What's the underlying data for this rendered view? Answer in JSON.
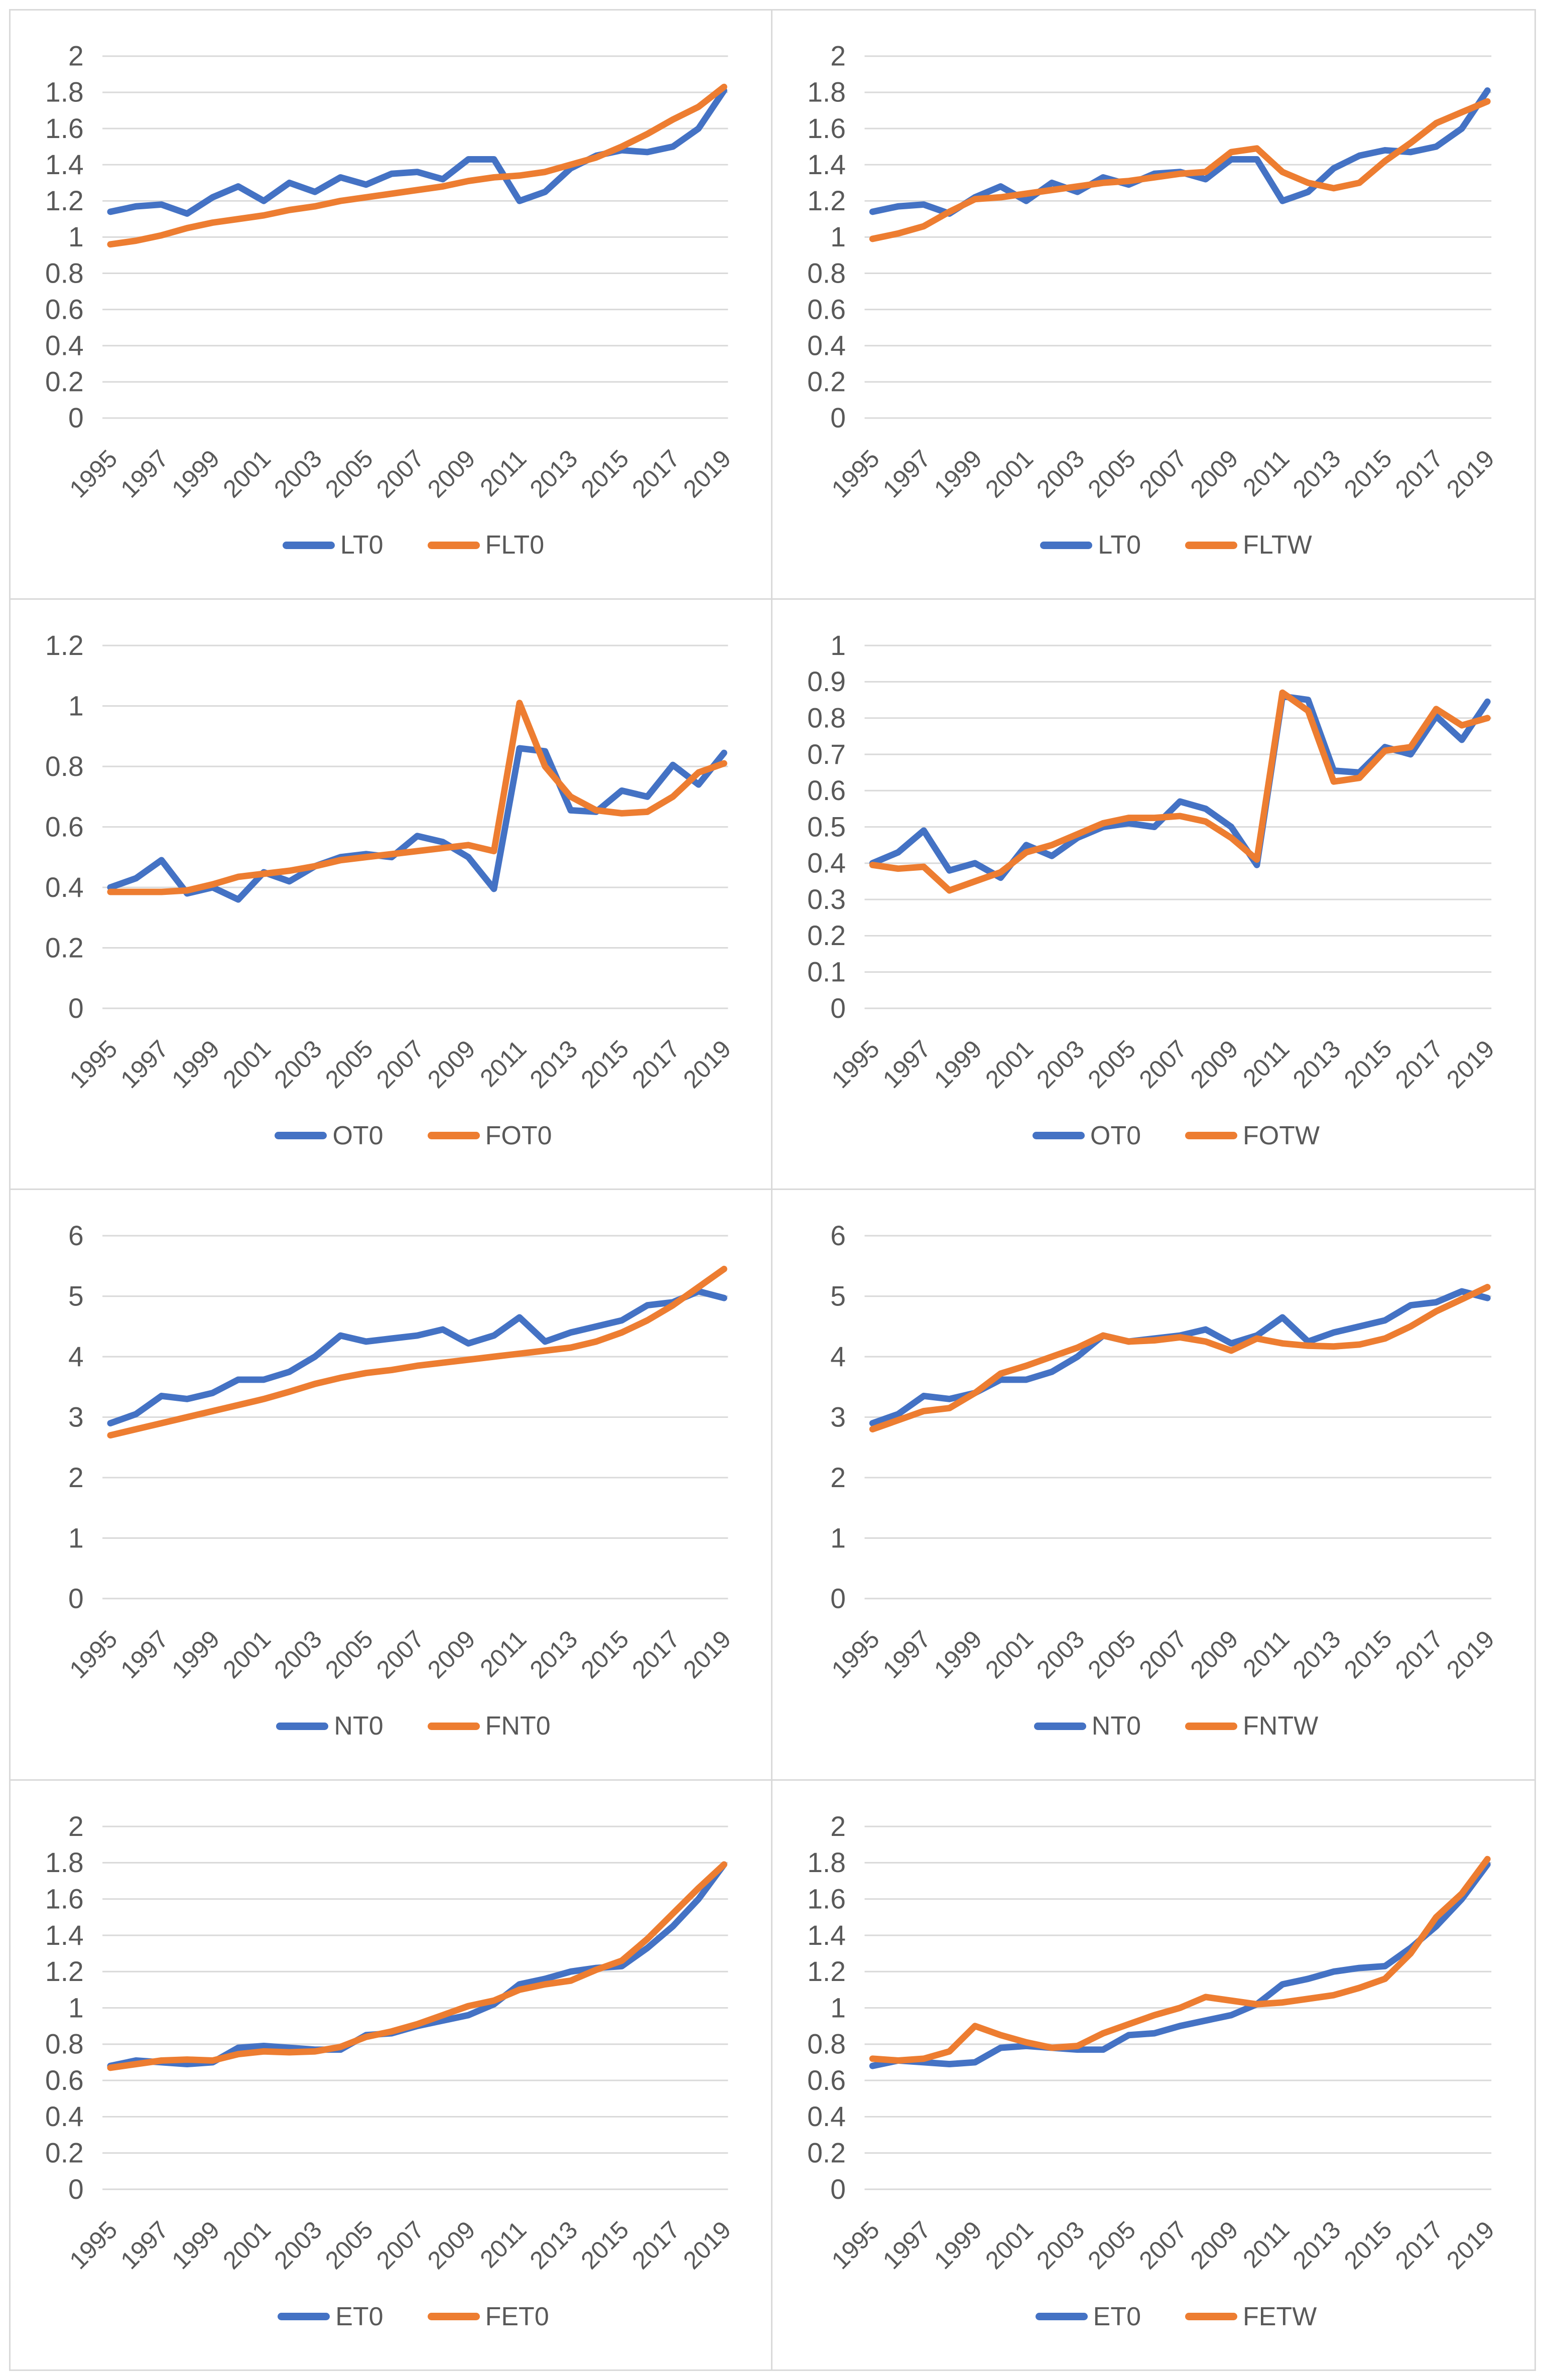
{
  "page": {
    "background": "#ffffff",
    "panel_border_color": "#d9d9d9",
    "grid_color": "#d9d9d9",
    "text_color": "#595959"
  },
  "years": [
    1995,
    1996,
    1997,
    1998,
    1999,
    2000,
    2001,
    2002,
    2003,
    2004,
    2005,
    2006,
    2007,
    2008,
    2009,
    2010,
    2011,
    2012,
    2013,
    2014,
    2015,
    2016,
    2017,
    2018,
    2019
  ],
  "x_tick_labels": [
    "1995",
    "1997",
    "1999",
    "2001",
    "2003",
    "2005",
    "2007",
    "2009",
    "2011",
    "2013",
    "2015",
    "2017",
    "2019"
  ],
  "chart_data": [
    {
      "type": "line",
      "grid": true,
      "legend_position": "bottom",
      "xlabel": "",
      "ylabel": "",
      "title": "",
      "ylim": [
        0,
        2
      ],
      "ystep": 0.2,
      "series": [
        {
          "name": "LT0",
          "color": "#4472C4",
          "values": [
            1.14,
            1.17,
            1.18,
            1.13,
            1.22,
            1.28,
            1.2,
            1.3,
            1.25,
            1.33,
            1.29,
            1.35,
            1.36,
            1.32,
            1.43,
            1.43,
            1.2,
            1.25,
            1.38,
            1.45,
            1.48,
            1.47,
            1.5,
            1.6,
            1.81
          ]
        },
        {
          "name": "FLT0",
          "color": "#ED7D31",
          "values": [
            0.96,
            0.98,
            1.01,
            1.05,
            1.08,
            1.1,
            1.12,
            1.15,
            1.17,
            1.2,
            1.22,
            1.24,
            1.26,
            1.28,
            1.31,
            1.33,
            1.34,
            1.36,
            1.4,
            1.44,
            1.5,
            1.57,
            1.65,
            1.72,
            1.83
          ]
        }
      ]
    },
    {
      "type": "line",
      "grid": true,
      "legend_position": "bottom",
      "xlabel": "",
      "ylabel": "",
      "title": "",
      "ylim": [
        0,
        2
      ],
      "ystep": 0.2,
      "series": [
        {
          "name": "LT0",
          "color": "#4472C4",
          "values": [
            1.14,
            1.17,
            1.18,
            1.13,
            1.22,
            1.28,
            1.2,
            1.3,
            1.25,
            1.33,
            1.29,
            1.35,
            1.36,
            1.32,
            1.43,
            1.43,
            1.2,
            1.25,
            1.38,
            1.45,
            1.48,
            1.47,
            1.5,
            1.6,
            1.81
          ]
        },
        {
          "name": "FLTW",
          "color": "#ED7D31",
          "values": [
            0.99,
            1.02,
            1.06,
            1.14,
            1.21,
            1.22,
            1.24,
            1.26,
            1.28,
            1.3,
            1.31,
            1.33,
            1.35,
            1.36,
            1.47,
            1.49,
            1.36,
            1.3,
            1.27,
            1.3,
            1.42,
            1.52,
            1.63,
            1.69,
            1.75
          ]
        }
      ]
    },
    {
      "type": "line",
      "grid": true,
      "legend_position": "bottom",
      "xlabel": "",
      "ylabel": "",
      "title": "",
      "ylim": [
        0,
        1.2
      ],
      "ystep": 0.2,
      "series": [
        {
          "name": "OT0",
          "color": "#4472C4",
          "values": [
            0.4,
            0.43,
            0.49,
            0.38,
            0.4,
            0.36,
            0.45,
            0.42,
            0.47,
            0.5,
            0.51,
            0.5,
            0.57,
            0.55,
            0.5,
            0.395,
            0.86,
            0.85,
            0.655,
            0.65,
            0.72,
            0.7,
            0.805,
            0.74,
            0.845
          ]
        },
        {
          "name": "FOT0",
          "color": "#ED7D31",
          "values": [
            0.385,
            0.385,
            0.385,
            0.39,
            0.41,
            0.435,
            0.445,
            0.455,
            0.47,
            0.49,
            0.5,
            0.51,
            0.52,
            0.53,
            0.54,
            0.52,
            1.01,
            0.8,
            0.7,
            0.655,
            0.645,
            0.65,
            0.7,
            0.78,
            0.81
          ]
        }
      ]
    },
    {
      "type": "line",
      "grid": true,
      "legend_position": "bottom",
      "xlabel": "",
      "ylabel": "",
      "title": "",
      "ylim": [
        0,
        1
      ],
      "ystep": 0.1,
      "series": [
        {
          "name": "OT0",
          "color": "#4472C4",
          "values": [
            0.4,
            0.43,
            0.49,
            0.38,
            0.4,
            0.36,
            0.45,
            0.42,
            0.47,
            0.5,
            0.51,
            0.5,
            0.57,
            0.55,
            0.5,
            0.395,
            0.86,
            0.85,
            0.655,
            0.65,
            0.72,
            0.7,
            0.805,
            0.74,
            0.845
          ]
        },
        {
          "name": "FOTW",
          "color": "#ED7D31",
          "values": [
            0.395,
            0.385,
            0.39,
            0.325,
            0.35,
            0.375,
            0.43,
            0.45,
            0.48,
            0.51,
            0.525,
            0.525,
            0.53,
            0.515,
            0.47,
            0.41,
            0.87,
            0.82,
            0.625,
            0.635,
            0.71,
            0.72,
            0.825,
            0.78,
            0.8
          ]
        }
      ]
    },
    {
      "type": "line",
      "grid": true,
      "legend_position": "bottom",
      "xlabel": "",
      "ylabel": "",
      "title": "",
      "ylim": [
        0,
        6
      ],
      "ystep": 1,
      "series": [
        {
          "name": "NT0",
          "color": "#4472C4",
          "values": [
            2.9,
            3.05,
            3.35,
            3.3,
            3.4,
            3.62,
            3.62,
            3.75,
            4.0,
            4.35,
            4.25,
            4.3,
            4.35,
            4.45,
            4.22,
            4.35,
            4.65,
            4.25,
            4.4,
            4.5,
            4.6,
            4.85,
            4.9,
            5.08,
            4.97
          ]
        },
        {
          "name": "FNT0",
          "color": "#ED7D31",
          "values": [
            2.7,
            2.8,
            2.9,
            3.0,
            3.1,
            3.2,
            3.3,
            3.42,
            3.55,
            3.65,
            3.73,
            3.78,
            3.85,
            3.9,
            3.95,
            4.0,
            4.05,
            4.1,
            4.15,
            4.25,
            4.4,
            4.6,
            4.85,
            5.15,
            5.45
          ]
        }
      ]
    },
    {
      "type": "line",
      "grid": true,
      "legend_position": "bottom",
      "xlabel": "",
      "ylabel": "",
      "title": "",
      "ylim": [
        0,
        6
      ],
      "ystep": 1,
      "series": [
        {
          "name": "NT0",
          "color": "#4472C4",
          "values": [
            2.9,
            3.05,
            3.35,
            3.3,
            3.4,
            3.62,
            3.62,
            3.75,
            4.0,
            4.35,
            4.25,
            4.3,
            4.35,
            4.45,
            4.22,
            4.35,
            4.65,
            4.25,
            4.4,
            4.5,
            4.6,
            4.85,
            4.9,
            5.08,
            4.97
          ]
        },
        {
          "name": "FNTW",
          "color": "#ED7D31",
          "values": [
            2.8,
            2.95,
            3.1,
            3.15,
            3.4,
            3.72,
            3.85,
            4.0,
            4.15,
            4.35,
            4.25,
            4.27,
            4.32,
            4.25,
            4.1,
            4.3,
            4.22,
            4.18,
            4.17,
            4.2,
            4.3,
            4.5,
            4.75,
            4.95,
            5.15
          ]
        }
      ]
    },
    {
      "type": "line",
      "grid": true,
      "legend_position": "bottom",
      "xlabel": "",
      "ylabel": "",
      "title": "",
      "ylim": [
        0,
        2
      ],
      "ystep": 0.2,
      "series": [
        {
          "name": "ET0",
          "color": "#4472C4",
          "values": [
            0.68,
            0.71,
            0.7,
            0.69,
            0.7,
            0.78,
            0.79,
            0.78,
            0.77,
            0.77,
            0.85,
            0.86,
            0.9,
            0.93,
            0.96,
            1.02,
            1.13,
            1.16,
            1.2,
            1.22,
            1.23,
            1.33,
            1.45,
            1.6,
            1.79
          ]
        },
        {
          "name": "FET0",
          "color": "#ED7D31",
          "values": [
            0.67,
            0.69,
            0.71,
            0.715,
            0.71,
            0.745,
            0.76,
            0.755,
            0.76,
            0.785,
            0.84,
            0.87,
            0.91,
            0.96,
            1.01,
            1.04,
            1.1,
            1.13,
            1.15,
            1.21,
            1.26,
            1.38,
            1.52,
            1.66,
            1.79
          ]
        }
      ]
    },
    {
      "type": "line",
      "grid": true,
      "legend_position": "bottom",
      "xlabel": "",
      "ylabel": "",
      "title": "",
      "ylim": [
        0,
        2
      ],
      "ystep": 0.2,
      "series": [
        {
          "name": "ET0",
          "color": "#4472C4",
          "values": [
            0.68,
            0.71,
            0.7,
            0.69,
            0.7,
            0.78,
            0.79,
            0.78,
            0.77,
            0.77,
            0.85,
            0.86,
            0.9,
            0.93,
            0.96,
            1.02,
            1.13,
            1.16,
            1.2,
            1.22,
            1.23,
            1.33,
            1.45,
            1.6,
            1.79
          ]
        },
        {
          "name": "FETW",
          "color": "#ED7D31",
          "values": [
            0.72,
            0.71,
            0.72,
            0.76,
            0.9,
            0.85,
            0.81,
            0.78,
            0.79,
            0.86,
            0.91,
            0.96,
            1.0,
            1.06,
            1.04,
            1.02,
            1.03,
            1.05,
            1.07,
            1.11,
            1.16,
            1.3,
            1.5,
            1.63,
            1.82
          ]
        }
      ]
    }
  ]
}
